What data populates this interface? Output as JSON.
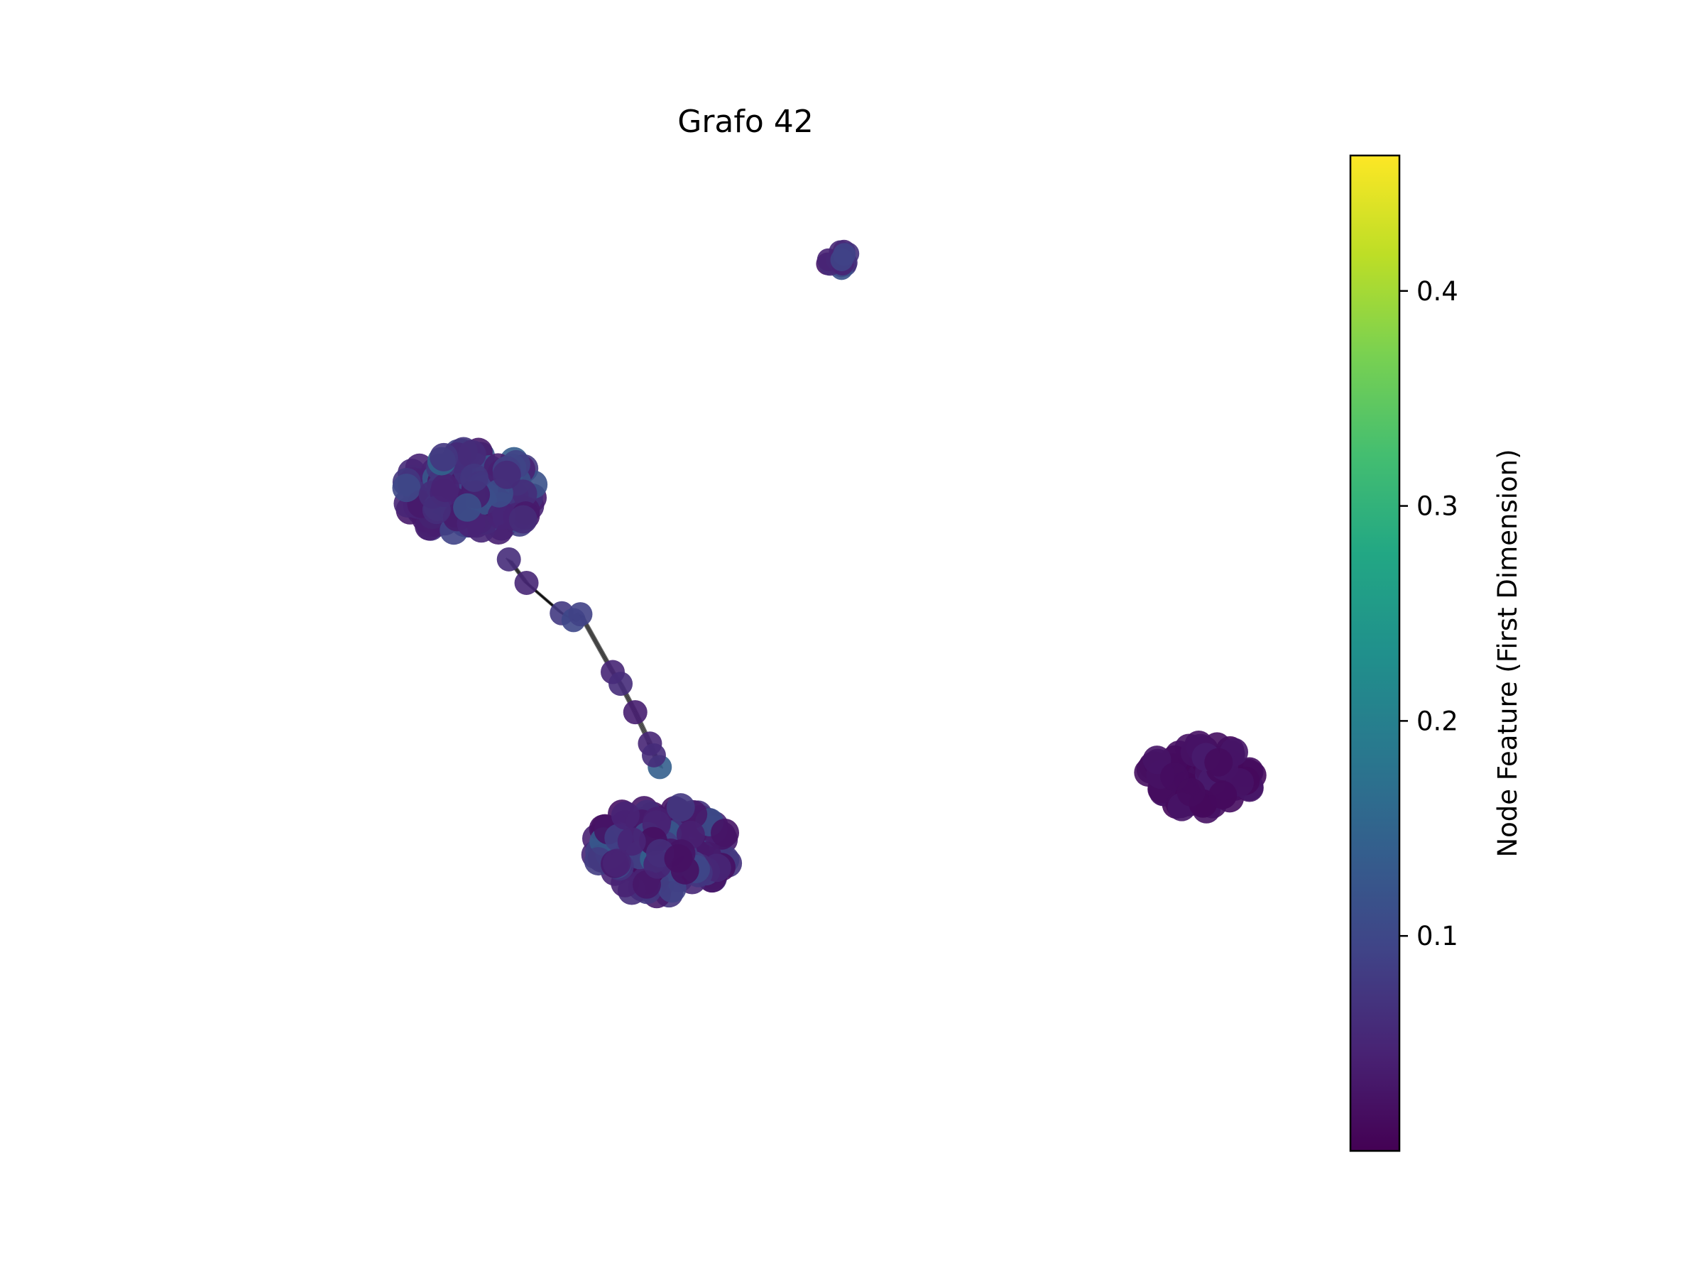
{
  "chart_data": {
    "type": "scatter",
    "subtype": "network-graph",
    "title": "Grafo 42",
    "axes_visible": false,
    "grid": false,
    "colormap": "viridis",
    "colorbar": {
      "label": "Node Feature (First Dimension)",
      "range": [
        0.0,
        0.463
      ],
      "ticks": [
        0.1,
        0.2,
        0.3,
        0.4
      ],
      "tick_labels": [
        "0.1",
        "0.2",
        "0.3",
        "0.4"
      ],
      "placement": "right"
    },
    "clusters": [
      {
        "name": "",
        "center": [
          0.205,
          0.7
        ],
        "spread": [
          0.075,
          0.045
        ],
        "count": 140,
        "feature_range": [
          0.03,
          0.16
        ]
      },
      {
        "name": "",
        "center": [
          0.4,
          0.335
        ],
        "spread": [
          0.075,
          0.048
        ],
        "count": 140,
        "feature_range": [
          0.02,
          0.17
        ]
      },
      {
        "name": "",
        "center": [
          0.577,
          0.938
        ],
        "spread": [
          0.016,
          0.014
        ],
        "count": 14,
        "feature_range": [
          0.03,
          0.14
        ]
      },
      {
        "name": "",
        "center": [
          0.95,
          0.41
        ],
        "spread": [
          0.057,
          0.035
        ],
        "count": 90,
        "feature_range": [
          0.01,
          0.04
        ]
      }
    ],
    "bridge_nodes": [
      {
        "x": 0.244,
        "y": 0.632,
        "value": 0.06
      },
      {
        "x": 0.262,
        "y": 0.608,
        "value": 0.05
      },
      {
        "x": 0.298,
        "y": 0.577,
        "value": 0.08
      },
      {
        "x": 0.31,
        "y": 0.57,
        "value": 0.1
      },
      {
        "x": 0.317,
        "y": 0.576,
        "value": 0.09
      },
      {
        "x": 0.35,
        "y": 0.517,
        "value": 0.05
      },
      {
        "x": 0.358,
        "y": 0.505,
        "value": 0.06
      },
      {
        "x": 0.373,
        "y": 0.476,
        "value": 0.04
      },
      {
        "x": 0.388,
        "y": 0.444,
        "value": 0.05
      },
      {
        "x": 0.398,
        "y": 0.42,
        "value": 0.14
      },
      {
        "x": 0.392,
        "y": 0.432,
        "value": 0.06
      }
    ],
    "bridge_edges": [
      [
        0,
        1
      ],
      [
        1,
        2
      ],
      [
        2,
        3
      ],
      [
        3,
        4
      ],
      [
        4,
        5
      ],
      [
        5,
        6
      ],
      [
        6,
        7
      ],
      [
        7,
        8
      ],
      [
        8,
        9
      ],
      [
        8,
        10
      ]
    ],
    "xlim": [
      0,
      1
    ],
    "ylim": [
      0,
      1
    ]
  }
}
